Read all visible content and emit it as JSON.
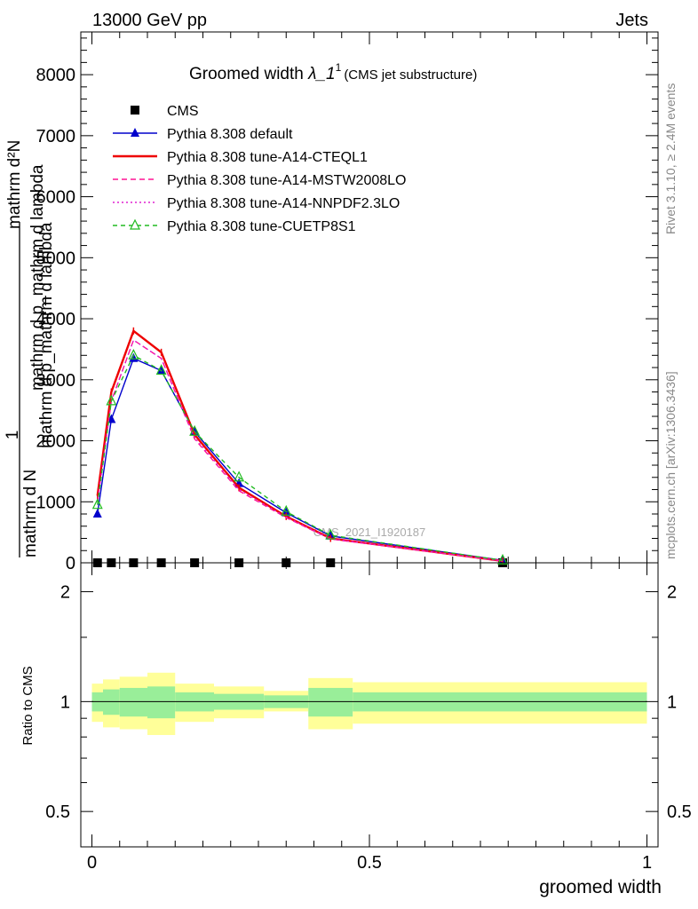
{
  "header": {
    "energy": "13000 GeV pp",
    "category": "Jets",
    "title_main": "Groomed width ",
    "title_lambda": "λ_1",
    "title_sup": "1",
    "title_sub": "(CMS jet substructure)",
    "analysis_id": "CMS_2021_I1920187",
    "side_rivet": "Rivet 3.1.10, ≥ 2.4M events",
    "side_site": "mcplots.cern.ch [arXiv:1306.3436]"
  },
  "axes": {
    "ylabel_num": "1",
    "ylabel_den_left": "mathrm d N",
    "ylabel_den_right": "mathrm d p_mathrm d lambda",
    "ylabel_stack_top": "mathrm d²N",
    "ylabel_stack_bottom": "mathrm d p_mathrm d lambda",
    "ratio_ylabel": "Ratio to CMS",
    "xlabel": "groomed width"
  },
  "chart_data": {
    "type": "line",
    "x_range": [
      -0.02,
      1.02
    ],
    "main_ylim": [
      0,
      8700
    ],
    "ratio_ylim": [
      0.4,
      2.4
    ],
    "ratio_log": true,
    "main_yticks": [
      0,
      1000,
      2000,
      3000,
      4000,
      5000,
      6000,
      7000,
      8000
    ],
    "main_ytick_labels": [
      "0",
      "1000",
      "2000",
      "3000",
      "4000",
      "5000",
      "6000",
      "7000",
      "8000"
    ],
    "ratio_yticks": [
      0.5,
      1,
      2
    ],
    "ratio_ytick_labels": [
      "0.5",
      "1",
      "2"
    ],
    "xticks": [
      0,
      0.5,
      1
    ],
    "xtick_labels": [
      "0",
      "0.5",
      "1"
    ],
    "x": [
      0.01,
      0.035,
      0.075,
      0.125,
      0.185,
      0.265,
      0.35,
      0.43,
      0.74
    ],
    "series": [
      {
        "name": "CMS",
        "color": "#000000",
        "style": "data",
        "values": [
          0,
          0,
          0,
          0,
          0,
          0,
          0,
          0,
          0
        ]
      },
      {
        "name": "Pythia 8.308 default",
        "color": "#0000cc",
        "style": "solid-triangle",
        "values": [
          800,
          2350,
          3350,
          3150,
          2150,
          1300,
          820,
          440,
          40
        ]
      },
      {
        "name": "Pythia 8.308 tune-A14-CTEQL1",
        "color": "#ee0000",
        "style": "solid-thick",
        "values": [
          1100,
          2800,
          3800,
          3450,
          2100,
          1230,
          760,
          400,
          30
        ]
      },
      {
        "name": "Pythia 8.308 tune-A14-MSTW2008LO",
        "color": "#ff1493",
        "style": "dashed",
        "values": [
          1000,
          2650,
          3650,
          3350,
          2030,
          1180,
          740,
          390,
          30
        ]
      },
      {
        "name": "Pythia 8.308 tune-A14-NNPDF2.3LO",
        "color": "#e020d0",
        "style": "dotted",
        "values": [
          1000,
          2650,
          3650,
          3350,
          2050,
          1200,
          750,
          395,
          30
        ]
      },
      {
        "name": "Pythia 8.308 tune-CUETP8S1",
        "color": "#22bb22",
        "style": "dashed-open-triangle",
        "values": [
          950,
          2650,
          3400,
          3150,
          2150,
          1400,
          840,
          450,
          40
        ]
      }
    ],
    "ratio_bins": [
      {
        "x0": 0.0,
        "x1": 0.02,
        "inner": [
          0.94,
          1.06
        ],
        "outer": [
          0.88,
          1.12
        ]
      },
      {
        "x0": 0.02,
        "x1": 0.05,
        "inner": [
          0.92,
          1.08
        ],
        "outer": [
          0.85,
          1.15
        ]
      },
      {
        "x0": 0.05,
        "x1": 0.1,
        "inner": [
          0.91,
          1.09
        ],
        "outer": [
          0.84,
          1.17
        ]
      },
      {
        "x0": 0.1,
        "x1": 0.15,
        "inner": [
          0.9,
          1.1
        ],
        "outer": [
          0.81,
          1.2
        ]
      },
      {
        "x0": 0.15,
        "x1": 0.22,
        "inner": [
          0.94,
          1.06
        ],
        "outer": [
          0.88,
          1.12
        ]
      },
      {
        "x0": 0.22,
        "x1": 0.31,
        "inner": [
          0.95,
          1.05
        ],
        "outer": [
          0.9,
          1.1
        ]
      },
      {
        "x0": 0.31,
        "x1": 0.39,
        "inner": [
          0.96,
          1.04
        ],
        "outer": [
          0.94,
          1.07
        ]
      },
      {
        "x0": 0.39,
        "x1": 0.47,
        "inner": [
          0.91,
          1.09
        ],
        "outer": [
          0.84,
          1.16
        ]
      },
      {
        "x0": 0.47,
        "x1": 1.0,
        "inner": [
          0.94,
          1.06
        ],
        "outer": [
          0.87,
          1.13
        ]
      }
    ],
    "band_colors": {
      "inner": "#99ee99",
      "outer": "#ffff99"
    },
    "legend_position": "top-left"
  }
}
